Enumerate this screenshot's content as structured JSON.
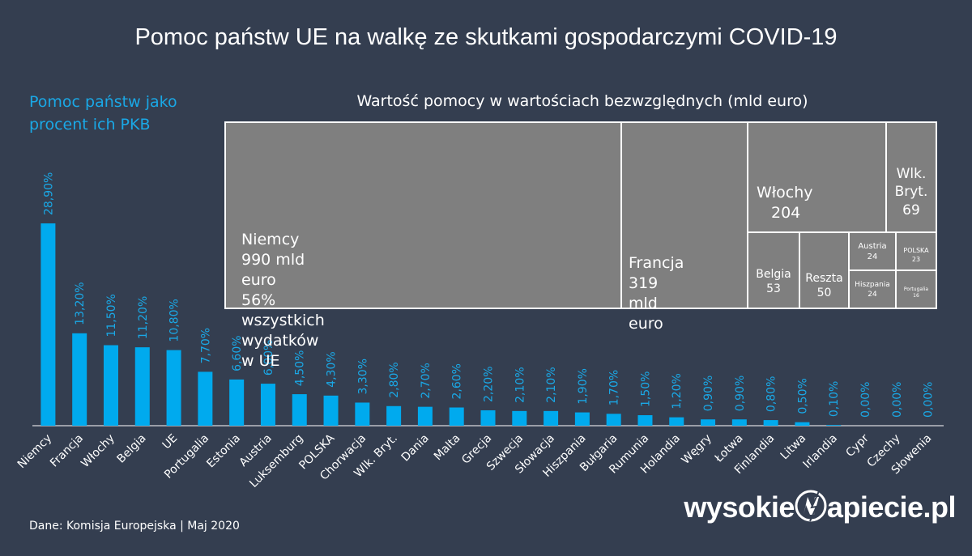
{
  "title": "Pomoc państw UE na walkę ze skutkami gospodarczymi COVID-19",
  "subtitle_left": "Pomoc państw jako procent ich PKB",
  "treemap_title": "Wartość pomocy w wartościach bezwzględnych (mld euro)",
  "treemap": [
    {
      "id": "niemcy",
      "lines": [
        "Niemcy",
        "990 mld euro",
        "56% wszystkich wydatków w UE"
      ]
    },
    {
      "id": "francja",
      "lines": [
        "Francja",
        "319 mld euro"
      ]
    },
    {
      "id": "wlochy",
      "lines": [
        "Włochy",
        "204"
      ]
    },
    {
      "id": "wlk-bryt",
      "lines": [
        "Wlk.",
        "Bryt.",
        "69"
      ]
    },
    {
      "id": "belgia",
      "lines": [
        "Belgia",
        "53"
      ]
    },
    {
      "id": "reszta",
      "lines": [
        "Reszta",
        "50"
      ]
    },
    {
      "id": "austria",
      "lines": [
        "Austria",
        "24"
      ]
    },
    {
      "id": "polska",
      "lines": [
        "POLSKA",
        "23"
      ]
    },
    {
      "id": "hiszpania",
      "lines": [
        "Hiszpania",
        "24"
      ]
    },
    {
      "id": "portugalia",
      "lines": [
        "Portugalia",
        "16"
      ]
    }
  ],
  "chart_data": {
    "type": "bar",
    "categories": [
      "Niemcy",
      "Francja",
      "Włochy",
      "Belgia",
      "UE",
      "Portugalia",
      "Estonia",
      "Austria",
      "Luksemburg",
      "POLSKA",
      "Chorwacja",
      "Wlk. Bryt.",
      "Dania",
      "Malta",
      "Grecja",
      "Szwecja",
      "Słowacja",
      "Hiszpania",
      "Bułgaria",
      "Rumunia",
      "Holandia",
      "Węgry",
      "Łotwa",
      "Finlandia",
      "Litwa",
      "Irlandia",
      "Cypr",
      "Czechy",
      "Słowenia"
    ],
    "values": [
      28.9,
      13.2,
      11.5,
      11.2,
      10.8,
      7.7,
      6.6,
      6.0,
      4.5,
      4.3,
      3.3,
      2.8,
      2.7,
      2.6,
      2.2,
      2.1,
      2.1,
      1.9,
      1.7,
      1.5,
      1.2,
      0.9,
      0.9,
      0.8,
      0.5,
      0.1,
      0.0,
      0.0,
      0.0
    ],
    "data_labels": [
      "28,90%",
      "13,20%",
      "11,50%",
      "11,20%",
      "10,80%",
      "7,70%",
      "6,60%",
      "6,00%",
      "4,50%",
      "4,30%",
      "3,30%",
      "2,80%",
      "2,70%",
      "2,60%",
      "2,20%",
      "2,10%",
      "2,10%",
      "1,90%",
      "1,70%",
      "1,50%",
      "1,20%",
      "0,90%",
      "0,90%",
      "0,80%",
      "0,50%",
      "0,10%",
      "0,00%",
      "0,00%",
      "0,00%"
    ],
    "ylim": [
      0,
      30
    ],
    "grid": false,
    "legend": "none",
    "bar_color": "#00aaee",
    "label_color": "#1aa8e6"
  },
  "colors": {
    "background": "#343e50",
    "tile": "#7f7f7f",
    "tile_border": "#ffffff",
    "accent": "#1aa8e6"
  },
  "source": "Dane: Komisja Europejska  |  Maj 2020",
  "brand": {
    "part1": "wysokie",
    "part2": "apiecie.pl"
  }
}
